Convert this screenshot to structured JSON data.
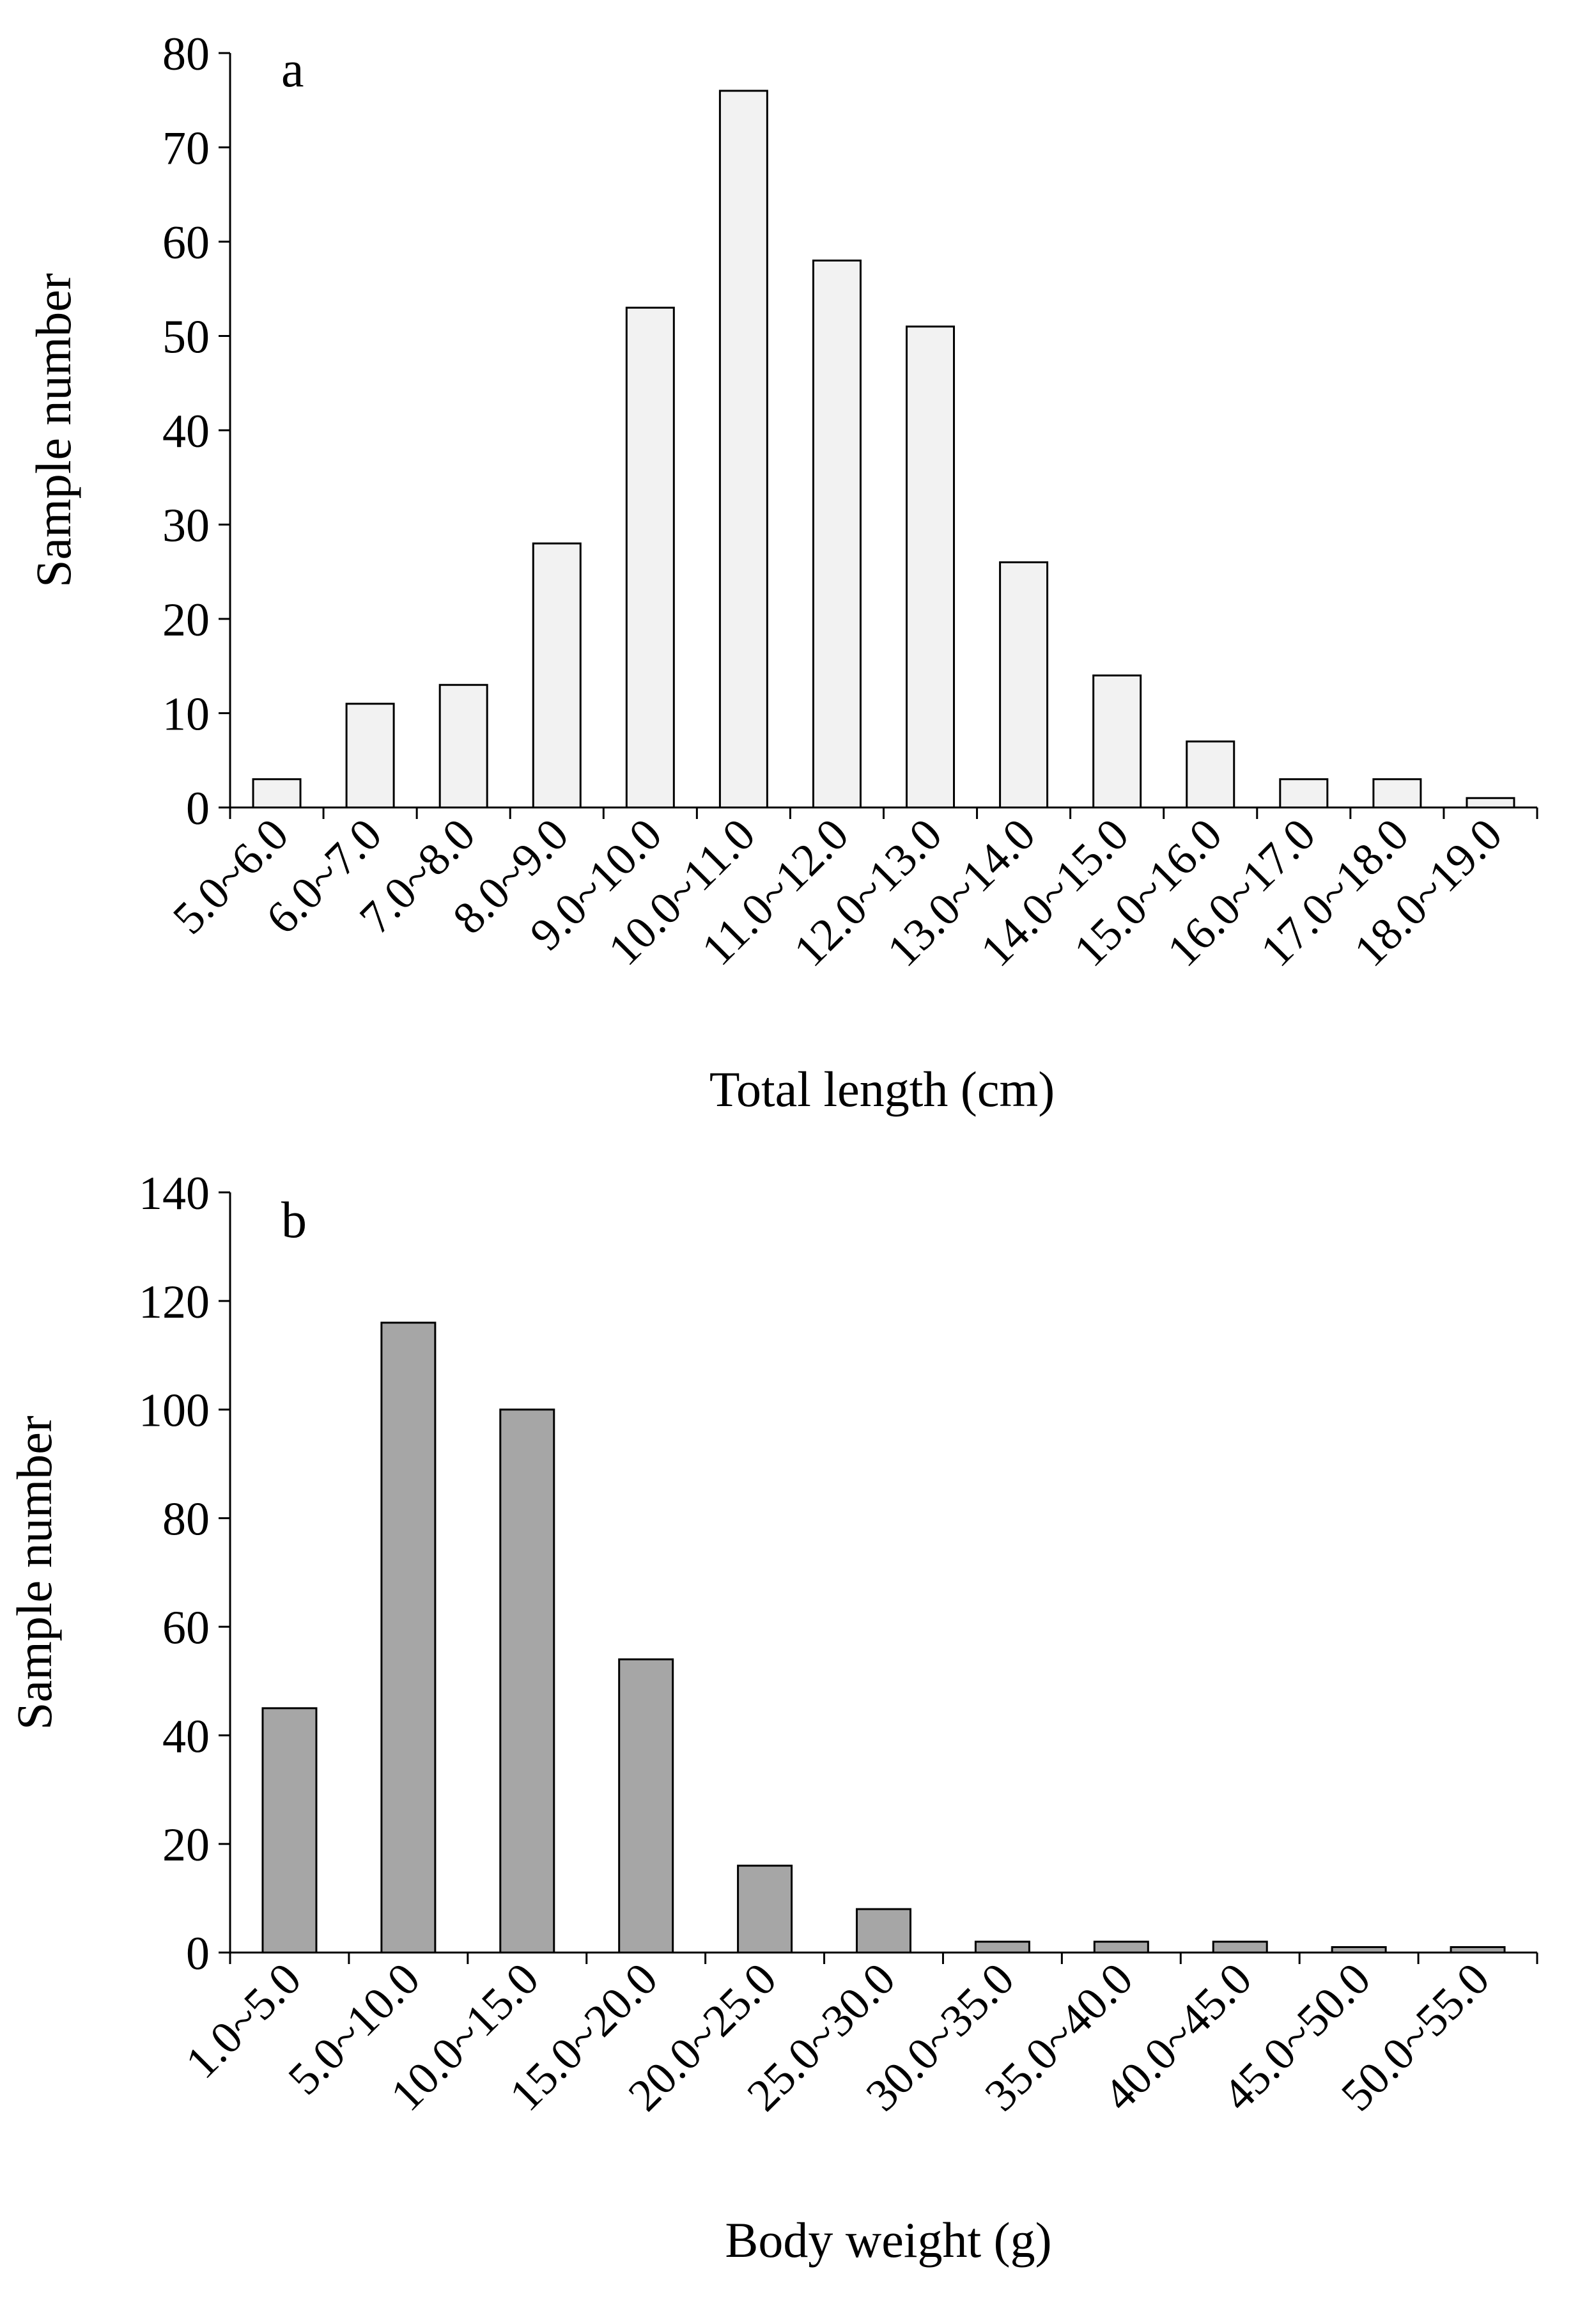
{
  "chart_data": [
    {
      "type": "bar",
      "panel_label": "a",
      "title": "",
      "xlabel": "Total length (cm)",
      "ylabel": "Sample number",
      "ylim": [
        0,
        80
      ],
      "yticks": [
        0,
        10,
        20,
        30,
        40,
        50,
        60,
        70,
        80
      ],
      "bar_color": "#f2f2f2",
      "categories": [
        "5.0~6.0",
        "6.0~7.0",
        "7.0~8.0",
        "8.0~9.0",
        "9.0~10.0",
        "10.0~11.0",
        "11.0~12.0",
        "12.0~13.0",
        "13.0~14.0",
        "14.0~15.0",
        "15.0~16.0",
        "16.0~17.0",
        "17.0~18.0",
        "18.0~19.0"
      ],
      "values": [
        3,
        11,
        13,
        28,
        53,
        76,
        58,
        51,
        26,
        14,
        7,
        3,
        3,
        1
      ]
    },
    {
      "type": "bar",
      "panel_label": "b",
      "title": "",
      "xlabel": "Body weight (g)",
      "ylabel": "Sample number",
      "ylim": [
        0,
        140
      ],
      "yticks": [
        0,
        20,
        40,
        60,
        80,
        100,
        120,
        140
      ],
      "bar_color": "#a6a6a6",
      "categories": [
        "1.0~5.0",
        "5.0~10.0",
        "10.0~15.0",
        "15.0~20.0",
        "20.0~25.0",
        "25.0~30.0",
        "30.0~35.0",
        "35.0~40.0",
        "40.0~45.0",
        "45.0~50.0",
        "50.0~55.0"
      ],
      "values": [
        45,
        116,
        100,
        54,
        16,
        8,
        2,
        2,
        2,
        1,
        1
      ]
    }
  ]
}
